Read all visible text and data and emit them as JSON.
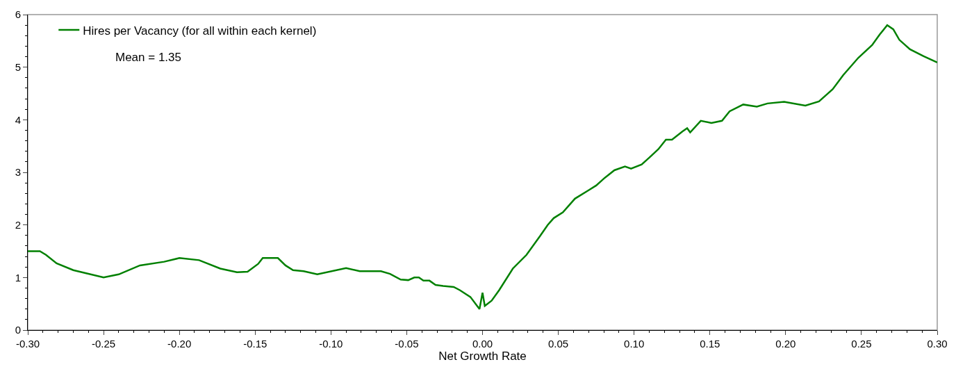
{
  "chart_data": {
    "type": "line",
    "xlabel": "Net Growth Rate",
    "xlim": [
      -0.3,
      0.3
    ],
    "xticks": [
      {
        "value": -0.3,
        "label": "-0.30"
      },
      {
        "value": -0.25,
        "label": "-0.25"
      },
      {
        "value": -0.2,
        "label": "-0.20"
      },
      {
        "value": -0.15,
        "label": "-0.15"
      },
      {
        "value": -0.1,
        "label": "-0.10"
      },
      {
        "value": -0.05,
        "label": "-0.05"
      },
      {
        "value": 0,
        "label": "0.00"
      },
      {
        "value": 0.05,
        "label": "0.05"
      },
      {
        "value": 0.1,
        "label": "0.10"
      },
      {
        "value": 0.15,
        "label": "0.15"
      },
      {
        "value": 0.2,
        "label": "0.20"
      },
      {
        "value": 0.25,
        "label": "0.25"
      },
      {
        "value": 0.3,
        "label": "0.30"
      }
    ],
    "ylim": [
      0,
      6
    ],
    "yticks": [
      0,
      1,
      2,
      3,
      4,
      5,
      6
    ],
    "grid": false,
    "legend": "top left",
    "marker": "none",
    "line_style": "solid",
    "annotations": [
      "Mean = 1.35"
    ],
    "series": [
      {
        "name": "Hires per Vacancy (for all within each kernel)",
        "color": "#008000",
        "x": [
          -0.3,
          -0.292,
          -0.288,
          -0.281,
          -0.27,
          -0.25,
          -0.24,
          -0.226,
          -0.21,
          -0.2,
          -0.187,
          -0.173,
          -0.162,
          -0.155,
          -0.148,
          -0.145,
          -0.135,
          -0.13,
          -0.125,
          -0.118,
          -0.109,
          -0.09,
          -0.081,
          -0.067,
          -0.061,
          -0.054,
          -0.049,
          -0.045,
          -0.042,
          -0.039,
          -0.035,
          -0.031,
          -0.026,
          -0.019,
          -0.015,
          -0.008,
          -0.002,
          0.0,
          0.0015,
          0.006,
          0.011,
          0.02,
          0.029,
          0.038,
          0.043,
          0.047,
          0.053,
          0.061,
          0.07,
          0.075,
          0.08,
          0.087,
          0.094,
          0.098,
          0.105,
          0.11,
          0.116,
          0.121,
          0.125,
          0.132,
          0.135,
          0.137,
          0.144,
          0.151,
          0.158,
          0.163,
          0.172,
          0.181,
          0.188,
          0.199,
          0.213,
          0.222,
          0.231,
          0.238,
          0.248,
          0.257,
          0.262,
          0.267,
          0.271,
          0.275,
          0.282,
          0.291,
          0.3
        ],
        "values": [
          1.5,
          1.5,
          1.43,
          1.27,
          1.14,
          1.0,
          1.06,
          1.23,
          1.3,
          1.37,
          1.33,
          1.17,
          1.1,
          1.11,
          1.26,
          1.37,
          1.37,
          1.23,
          1.14,
          1.12,
          1.06,
          1.18,
          1.12,
          1.12,
          1.07,
          0.96,
          0.95,
          1.0,
          1.0,
          0.94,
          0.94,
          0.86,
          0.84,
          0.82,
          0.76,
          0.63,
          0.4,
          0.71,
          0.46,
          0.56,
          0.76,
          1.17,
          1.43,
          1.79,
          2.0,
          2.13,
          2.24,
          2.5,
          2.66,
          2.75,
          2.88,
          3.04,
          3.11,
          3.07,
          3.15,
          3.28,
          3.44,
          3.62,
          3.62,
          3.78,
          3.84,
          3.76,
          3.98,
          3.94,
          3.98,
          4.16,
          4.29,
          4.25,
          4.31,
          4.34,
          4.27,
          4.35,
          4.58,
          4.85,
          5.18,
          5.42,
          5.62,
          5.8,
          5.72,
          5.52,
          5.34,
          5.21,
          5.09
        ]
      }
    ]
  }
}
